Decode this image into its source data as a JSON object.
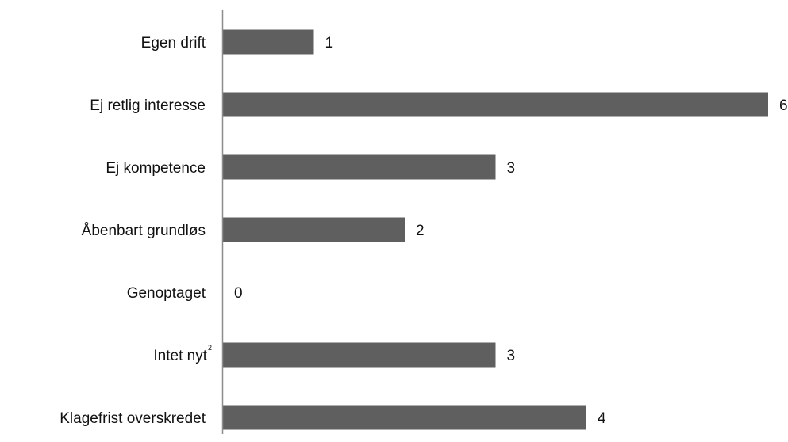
{
  "chart_data": {
    "type": "bar",
    "orientation": "horizontal",
    "title": "",
    "xlabel": "",
    "ylabel": "",
    "categories": [
      "Egen drift",
      "Ej retlig interesse",
      "Ej kompetence",
      "Åbenbart grundløs",
      "Genoptaget",
      "Intet nyt",
      "Klagefrist overskredet"
    ],
    "category_superscripts": [
      "",
      "",
      "",
      "",
      "",
      "2",
      ""
    ],
    "values": [
      1,
      6,
      3,
      2,
      0,
      3,
      4
    ],
    "xlim": [
      0,
      6
    ],
    "grid": false,
    "legend": "none",
    "data_labels": true,
    "bar_color": "#5f5f5f",
    "axis_color": "#8c8c8c",
    "text_color": "#111111"
  }
}
